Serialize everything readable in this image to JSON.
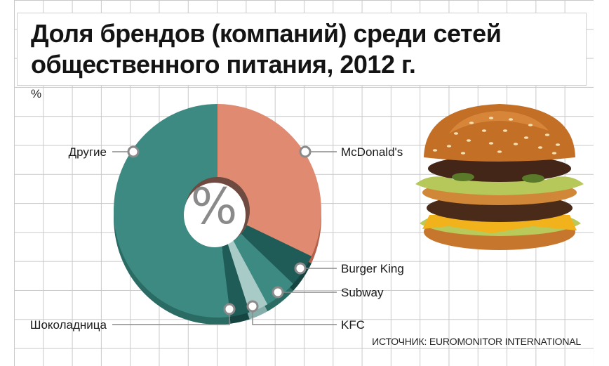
{
  "title": "Доля брендов (компаний) среди сетей общественного питания, 2012 г.",
  "unit_label": "%",
  "center_symbol": "%",
  "source": "ИСТОЧНИК: EUROMONITOR INTERNATIONAL",
  "image": {
    "icon": "burger-icon"
  },
  "colors": {
    "background": "#ffffff",
    "grid": "#c9c9c9",
    "mcdonalds": "#e08a72",
    "mcdonalds_side": "#b4614c",
    "teal": "#3d8a82",
    "teal_side": "#2a6b64",
    "dark_teal": "#1f5c57",
    "dark_teal_side": "#154441",
    "light": "#a8cbc7",
    "light_side": "#86aeaa"
  },
  "chart_data": {
    "type": "pie",
    "title": "Доля брендов (компаний) среди сетей общественного питания, 2012 г.",
    "unit": "%",
    "categories": [
      "McDonald's",
      "Burger King",
      "Subway",
      "KFC",
      "Шоколадница",
      "Другие"
    ],
    "values": [
      32,
      5,
      5,
      3,
      3,
      52
    ],
    "slice_colors": [
      "#e08a72",
      "#1f5c57",
      "#3d8a82",
      "#a8cbc7",
      "#1f5c57",
      "#3d8a82"
    ],
    "side_colors": [
      "#b4614c",
      "#154441",
      "#2a6b64",
      "#86aeaa",
      "#154441",
      "#2a6b64"
    ]
  }
}
